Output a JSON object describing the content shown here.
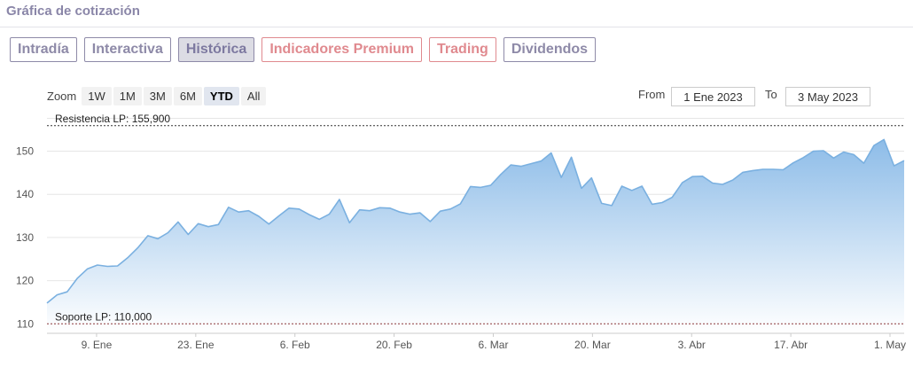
{
  "header": {
    "title": "Gráfica de cotización"
  },
  "tabs": [
    {
      "label": "Intradía",
      "style": "normal"
    },
    {
      "label": "Interactiva",
      "style": "normal"
    },
    {
      "label": "Histórica",
      "style": "active"
    },
    {
      "label": "Indicadores Premium",
      "style": "premium"
    },
    {
      "label": "Trading",
      "style": "premium"
    },
    {
      "label": "Dividendos",
      "style": "normal"
    }
  ],
  "zoom": {
    "label": "Zoom",
    "options": [
      "1W",
      "1M",
      "3M",
      "6M",
      "YTD",
      "All"
    ],
    "selected": "YTD"
  },
  "range": {
    "from_label": "From",
    "from_value": "1 Ene 2023",
    "to_label": "To",
    "to_value": "3 May 2023"
  },
  "colors": {
    "line": "#7ab0e0",
    "fill_top": "#8dbce8",
    "fill_bottom": "#ffffff",
    "support_line": "#8b3a3a",
    "resistance_line": "#333333"
  },
  "chart_data": {
    "type": "area",
    "x_start": "2023-01-02",
    "x_end": "2023-05-03",
    "y": [
      114.8,
      116.7,
      117.4,
      120.5,
      122.7,
      123.6,
      123.3,
      123.4,
      125.3,
      127.6,
      130.4,
      129.7,
      131.1,
      133.6,
      130.7,
      133.2,
      132.5,
      133.0,
      137.0,
      135.9,
      136.2,
      134.9,
      133.1,
      135.0,
      136.8,
      136.6,
      135.3,
      134.2,
      135.4,
      138.8,
      133.4,
      136.4,
      136.2,
      136.9,
      136.8,
      135.9,
      135.4,
      135.7,
      133.7,
      136.1,
      136.6,
      137.8,
      141.8,
      141.6,
      142.1,
      144.6,
      146.8,
      146.5,
      147.1,
      147.7,
      149.6,
      143.9,
      148.6,
      141.4,
      143.8,
      137.9,
      137.4,
      141.9,
      140.9,
      141.9,
      137.7,
      138.1,
      139.3,
      142.7,
      144.1,
      144.2,
      142.6,
      142.3,
      143.3,
      145.1,
      145.5,
      145.8,
      145.8,
      145.7,
      147.3,
      148.5,
      150.0,
      150.1,
      148.4,
      149.8,
      149.2,
      147.2,
      151.3,
      152.7,
      146.6,
      147.8
    ],
    "ylim": [
      108,
      157.5
    ],
    "y_ticks": [
      110,
      120,
      130,
      140,
      150
    ],
    "x_ticks": [
      {
        "date": "2023-01-09",
        "label": "9. Ene"
      },
      {
        "date": "2023-01-23",
        "label": "23. Ene"
      },
      {
        "date": "2023-02-06",
        "label": "6. Feb"
      },
      {
        "date": "2023-02-20",
        "label": "20. Feb"
      },
      {
        "date": "2023-03-06",
        "label": "6. Mar"
      },
      {
        "date": "2023-03-20",
        "label": "20. Mar"
      },
      {
        "date": "2023-04-03",
        "label": "3. Abr"
      },
      {
        "date": "2023-04-17",
        "label": "17. Abr"
      },
      {
        "date": "2023-05-01",
        "label": "1. May"
      }
    ],
    "grid": "horizontal",
    "annotations": [
      {
        "label": "Resistencia LP: 155,900",
        "value": 155.9,
        "kind": "resistance"
      },
      {
        "label": "Soporte LP: 110,000",
        "value": 110.0,
        "kind": "support"
      }
    ]
  }
}
